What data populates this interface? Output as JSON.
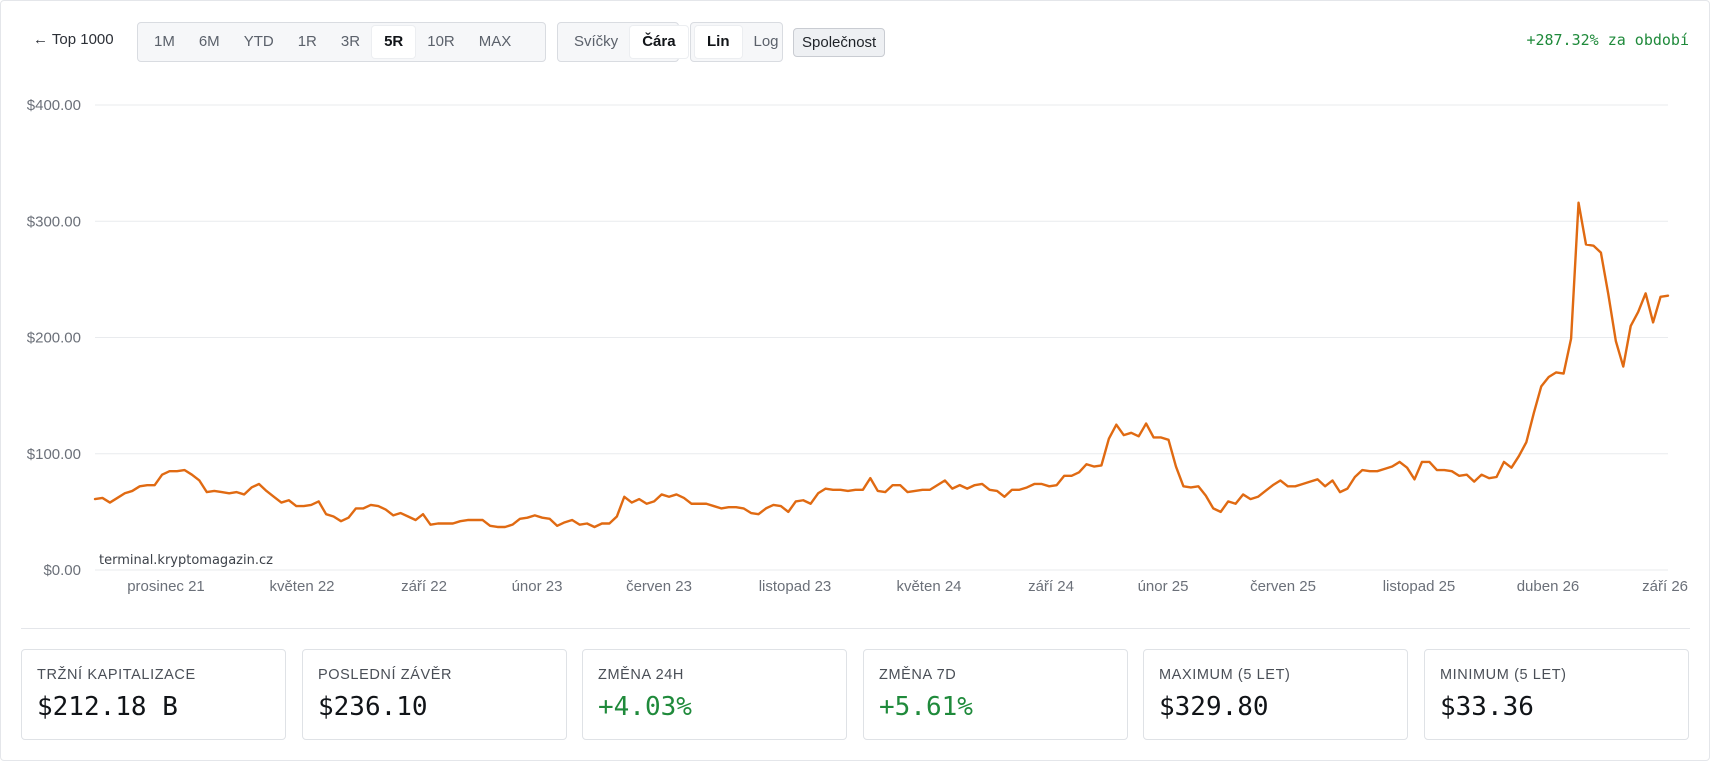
{
  "toolbar": {
    "back_label": "← Top 1000",
    "ranges": [
      "1M",
      "6M",
      "YTD",
      "1R",
      "3R",
      "5R",
      "10R",
      "MAX"
    ],
    "active_range": "5R",
    "chart_types": [
      "Svíčky",
      "Čára"
    ],
    "active_chart_type": "Čára",
    "scales": [
      "Lin",
      "Log"
    ],
    "active_scale": "Lin",
    "company_label": "Společnost",
    "period_change": "+287.32% za období"
  },
  "watermark": "terminal.kryptomagazin.cz",
  "colors": {
    "line": "#e06a12",
    "positive": "#1f8a3b",
    "grid": "#e9ebee"
  },
  "chart_data": {
    "type": "line",
    "x_tick_labels": [
      "prosinec 21",
      "květen 22",
      "září 22",
      "únor 23",
      "červen 23",
      "listopad 23",
      "květen 24",
      "září 24",
      "únor 25",
      "červen 25",
      "listopad 25",
      "duben 26",
      "září 26"
    ],
    "y_tick_labels": [
      "$0.00",
      "$100.00",
      "$200.00",
      "$300.00",
      "$400.00"
    ],
    "ylim": [
      0,
      400
    ],
    "grid": true,
    "series": [
      {
        "values": [
          61,
          62,
          58,
          62,
          66,
          68,
          72,
          73,
          73,
          82,
          85,
          85,
          86,
          82,
          77,
          67,
          68,
          67,
          66,
          67,
          65,
          71,
          74,
          68,
          63,
          58,
          60,
          55,
          55,
          56,
          59,
          48,
          46,
          42,
          45,
          53,
          53,
          56,
          55,
          52,
          47,
          49,
          46,
          43,
          48,
          39,
          40,
          40,
          40,
          42,
          43,
          43,
          43,
          38,
          37,
          37,
          39,
          44,
          45,
          47,
          45,
          44,
          38,
          41,
          43,
          39,
          40,
          37,
          40,
          40,
          46,
          63,
          58,
          61,
          57,
          59,
          65,
          63,
          65,
          62,
          57,
          57,
          57,
          55,
          53,
          54,
          54,
          53,
          49,
          48,
          53,
          56,
          55,
          50,
          59,
          60,
          57,
          66,
          70,
          69,
          69,
          68,
          69,
          69,
          79,
          68,
          67,
          73,
          73,
          67,
          68,
          69,
          69,
          73,
          77,
          70,
          73,
          70,
          73,
          74,
          69,
          68,
          63,
          69,
          69,
          71,
          74,
          74,
          72,
          73,
          81,
          81,
          84,
          91,
          89,
          90,
          113,
          125,
          116,
          118,
          115,
          126,
          114,
          114,
          112,
          89,
          72,
          71,
          72,
          64,
          53,
          50,
          59,
          57,
          65,
          61,
          63,
          68,
          73,
          77,
          72,
          72,
          74,
          76,
          78,
          72,
          77,
          67,
          70,
          80,
          86,
          85,
          85,
          87,
          89,
          93,
          88,
          78,
          93,
          93,
          86,
          86,
          85,
          81,
          82,
          76,
          82,
          79,
          80,
          93,
          88,
          98,
          110,
          135,
          158,
          166,
          170,
          169,
          199,
          316,
          280,
          279,
          273,
          237,
          197,
          175,
          210,
          222,
          238,
          213,
          235,
          236
        ]
      }
    ]
  },
  "stats": [
    {
      "label": "TRŽNÍ KAPITALIZACE",
      "value": "$212.18 B"
    },
    {
      "label": "POSLEDNÍ ZÁVĚR",
      "value": "$236.10"
    },
    {
      "label": "ZMĚNA 24H",
      "value": "+4.03%"
    },
    {
      "label": "ZMĚNA 7D",
      "value": "+5.61%"
    },
    {
      "label": "MAXIMUM (5 LET)",
      "value": "$329.80"
    },
    {
      "label": "MINIMUM (5 LET)",
      "value": "$33.36"
    }
  ]
}
